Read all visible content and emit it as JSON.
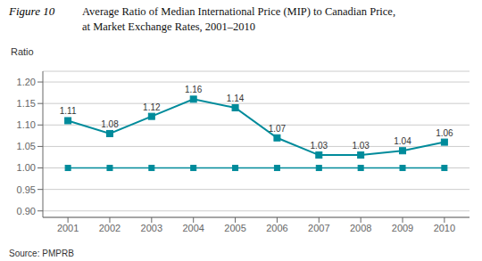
{
  "chart_data": {
    "type": "line",
    "title": [
      "Average Ratio of Median International Price (MIP) to Canadian Price,",
      "at Market Exchange Rates, 2001–2010"
    ],
    "annotations": [
      "Figure 10",
      "Source: PMPRB"
    ],
    "y_label": "Ratio",
    "x": [
      2001,
      2002,
      2003,
      2004,
      2005,
      2006,
      2007,
      2008,
      2009,
      2010
    ],
    "series": [
      {
        "color": "#008B9B",
        "marker": "square",
        "data_labels": true,
        "values": [
          1.11,
          1.08,
          1.12,
          1.16,
          1.14,
          1.07,
          1.03,
          1.03,
          1.04,
          1.06
        ]
      },
      {
        "color": "#008B9B",
        "marker": "square",
        "values": [
          1.0,
          1.0,
          1.0,
          1.0,
          1.0,
          1.0,
          1.0,
          1.0,
          1.0,
          1.0
        ]
      }
    ],
    "xlim": [
      2000.4,
      2010.6
    ],
    "xticks": [
      2001,
      2002,
      2003,
      2004,
      2005,
      2006,
      2007,
      2008,
      2009,
      2010
    ],
    "ylim": [
      0.885,
      1.225
    ],
    "yticks": [
      {
        "value": 0.9,
        "label": "0.90"
      },
      0.95,
      {
        "value": 1,
        "label": "1.00"
      },
      1.05,
      {
        "value": 1.1,
        "label": "1.10"
      },
      1.15,
      {
        "value": 1.2,
        "label": "1.20"
      }
    ],
    "grid": "y"
  }
}
